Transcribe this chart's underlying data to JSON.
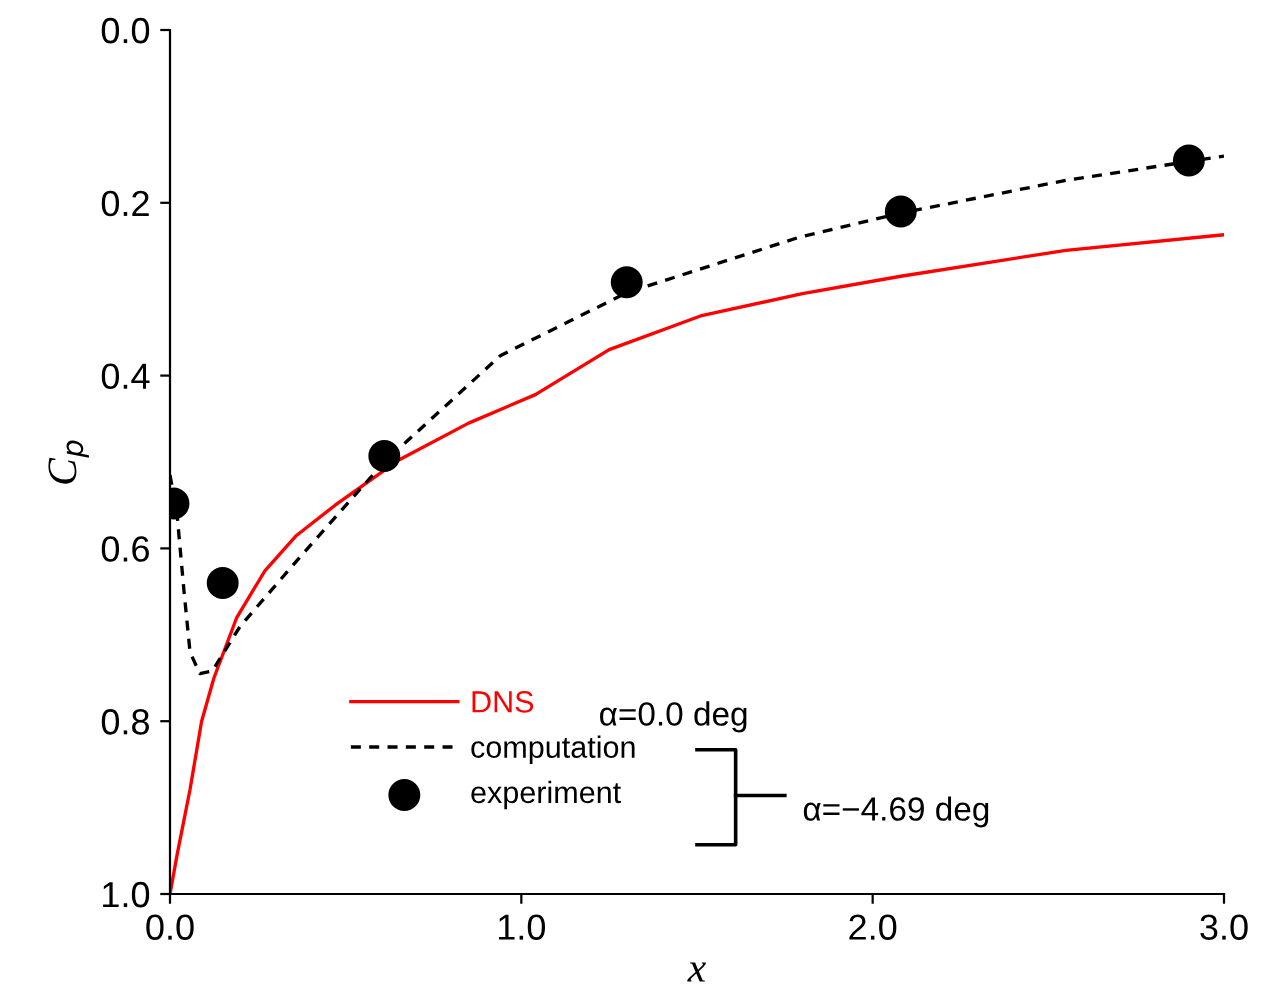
{
  "chart_data": {
    "type": "line",
    "xlabel": "x",
    "ylabel": "C$_{p}$",
    "xlim": [
      0.0,
      3.0
    ],
    "ylim": [
      1.0,
      0.0
    ],
    "xticks": [
      {
        "value": 0.0,
        "label": "0.0"
      },
      {
        "value": 1.0,
        "label": "1.0"
      },
      {
        "value": 2.0,
        "label": "2.0"
      },
      {
        "value": 3.0,
        "label": "3.0"
      }
    ],
    "yticks": [
      {
        "value": 0.0,
        "label": "0.0"
      },
      {
        "value": 0.2,
        "label": "0.2"
      },
      {
        "value": 0.4,
        "label": "0.4"
      },
      {
        "value": 0.6,
        "label": "0.6"
      },
      {
        "value": 0.8,
        "label": "0.8"
      },
      {
        "value": 1.0,
        "label": "1.0"
      }
    ],
    "grid": false,
    "legend": "bottom",
    "series": [
      {
        "name": "DNS",
        "color": "#ff0000",
        "line_style": "solid",
        "marker": "none",
        "x": [
          0.0,
          0.02,
          0.057,
          0.09,
          0.125,
          0.19,
          0.27,
          0.36,
          0.47,
          0.65,
          0.85,
          1.04,
          1.25,
          1.51,
          1.8,
          2.08,
          2.55,
          3.0
        ],
        "values": [
          1.0,
          0.955,
          0.879,
          0.8,
          0.75,
          0.68,
          0.626,
          0.585,
          0.55,
          0.498,
          0.455,
          0.422,
          0.37,
          0.331,
          0.305,
          0.285,
          0.255,
          0.237
        ]
      },
      {
        "name": "computation",
        "color": "#000000",
        "line_style": "dashed",
        "marker": "none",
        "x": [
          0.0,
          0.02,
          0.04,
          0.057,
          0.085,
          0.12,
          0.2,
          0.37,
          0.61,
          0.94,
          1.3,
          1.79,
          2.08,
          2.55,
          3.0
        ],
        "values": [
          0.515,
          0.56,
          0.65,
          0.72,
          0.745,
          0.742,
          0.69,
          0.61,
          0.5,
          0.377,
          0.304,
          0.24,
          0.212,
          0.174,
          0.146
        ]
      },
      {
        "name": "experiment",
        "type": "scatter",
        "color": "#000000",
        "marker": "circle",
        "x": [
          0.01,
          0.15,
          0.61,
          1.3,
          2.08,
          2.9
        ],
        "values": [
          0.548,
          0.64,
          0.493,
          0.292,
          0.21,
          0.151
        ]
      }
    ],
    "annotations": [
      "α=0.0 deg",
      "α=−4.69 deg"
    ]
  }
}
